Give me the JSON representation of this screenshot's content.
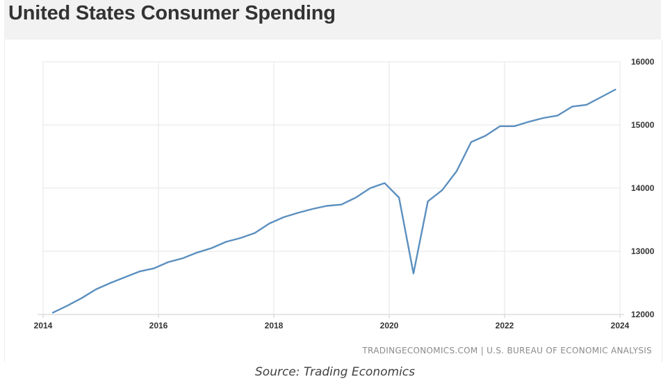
{
  "header": {
    "title": "United States Consumer Spending"
  },
  "footer": {
    "watermark": "TRADINGECONOMICS.COM | U.S. BUREAU OF ECONOMIC ANALYSIS",
    "caption": "Source: Trading Economics"
  },
  "colors": {
    "line": "#5b8fbf",
    "grid": "#e6e6e6",
    "axis": "#cccccc",
    "text": "#333333"
  },
  "chart_data": {
    "type": "line",
    "title": "United States Consumer Spending",
    "xlabel": "",
    "ylabel": "",
    "xlim": [
      2014,
      2024
    ],
    "ylim": [
      12000,
      16000
    ],
    "x_ticks": [
      2014,
      2016,
      2018,
      2020,
      2022,
      2024
    ],
    "x_tick_labels": [
      "2014",
      "2016",
      "2018",
      "2020",
      "2022",
      "2024"
    ],
    "y_ticks": [
      12000,
      13000,
      14000,
      15000,
      16000
    ],
    "y_tick_labels": [
      "12000",
      "13000",
      "14000",
      "15000",
      "16000"
    ],
    "y_axis_position": "right",
    "grid": true,
    "series": [
      {
        "x": [
          2014.17,
          2014.42,
          2014.67,
          2014.92,
          2015.17,
          2015.42,
          2015.67,
          2015.92,
          2016.17,
          2016.42,
          2016.67,
          2016.92,
          2017.17,
          2017.42,
          2017.67,
          2017.92,
          2018.17,
          2018.42,
          2018.67,
          2018.92,
          2019.17,
          2019.42,
          2019.67,
          2019.92,
          2020.17,
          2020.42,
          2020.67,
          2020.92,
          2021.17,
          2021.42,
          2021.67,
          2021.92,
          2022.17,
          2022.42,
          2022.67,
          2022.92,
          2023.17,
          2023.42,
          2023.67,
          2023.92
        ],
        "values": [
          12030,
          12140,
          12260,
          12400,
          12500,
          12590,
          12680,
          12730,
          12830,
          12890,
          12980,
          13050,
          13150,
          13210,
          13290,
          13440,
          13540,
          13610,
          13670,
          13720,
          13740,
          13850,
          14000,
          14080,
          13850,
          12650,
          13790,
          13970,
          14270,
          14730,
          14830,
          14980,
          14980,
          15050,
          15110,
          15150,
          15290,
          15320,
          15440,
          15560
        ]
      }
    ]
  }
}
